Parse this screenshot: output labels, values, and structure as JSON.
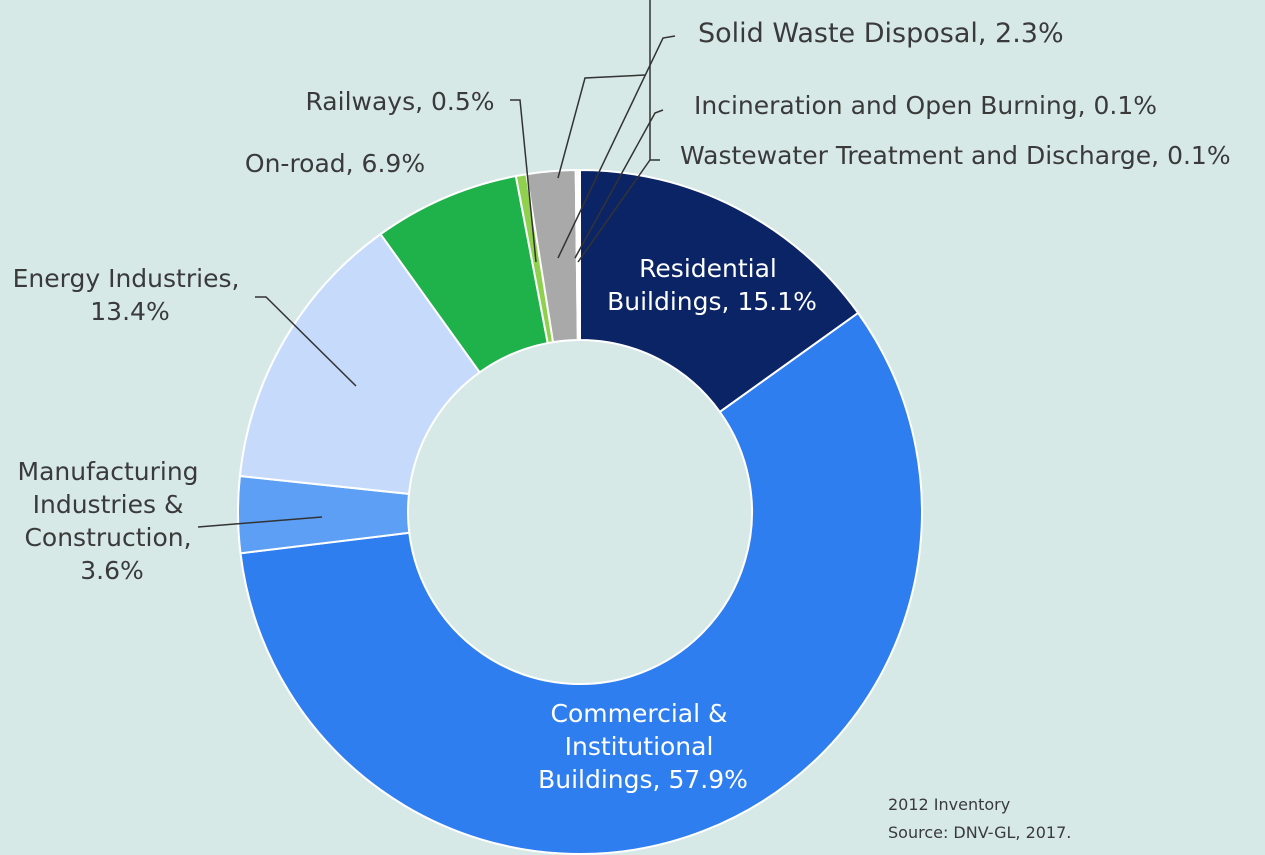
{
  "chart_data": {
    "type": "pie",
    "donut": true,
    "values": [
      15.1,
      57.9,
      3.6,
      13.4,
      6.9,
      0.5,
      2.3,
      0.1,
      0.1
    ],
    "value_labels": [
      "Residential Buildings, 15.1%",
      "Commercial & Institutional Buildings, 57.9%",
      "Manufacturing Industries & Construction, 3.6%",
      "Energy Industries, 13.4%",
      "On-road, 6.9%",
      "Railways, 0.5%",
      "Solid Waste Disposal, 2.3%",
      "Incineration and Open Burning, 0.1%",
      "Wastewater Treatment and Discharge, 0.1%"
    ],
    "colors": [
      "#0b2466",
      "#2f7ef0",
      "#5c9ff5",
      "#c6dafc",
      "#1fb24b",
      "#8fd14f",
      "#a9a9a9",
      "#bdbdbd",
      "#d0d0d0"
    ],
    "notes": [
      "2012 Inventory",
      "Source: DNV-GL, 2017."
    ]
  }
}
